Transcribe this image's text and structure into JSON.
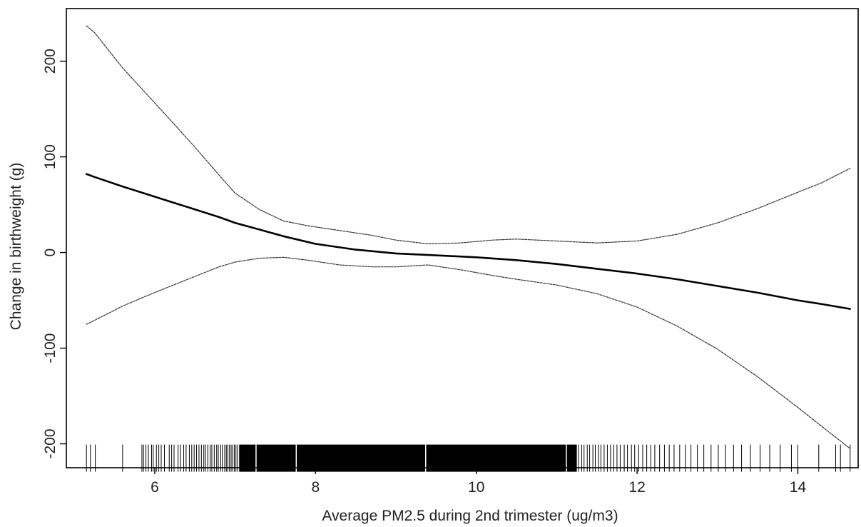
{
  "chart_data": {
    "type": "line",
    "xlabel": "Average PM2.5 during 2nd trimester (ug/m3)",
    "ylabel": "Change in birthweight (g)",
    "xlim": [
      4.9,
      14.75
    ],
    "ylim": [
      -225,
      255
    ],
    "x_ticks": [
      6,
      8,
      10,
      12,
      14
    ],
    "y_ticks": [
      -200,
      -100,
      0,
      100,
      200
    ],
    "x_tick_labels": [
      "6",
      "8",
      "10",
      "12",
      "14"
    ],
    "y_tick_labels": [
      "-200",
      "-100",
      "0",
      "100",
      "200"
    ],
    "grid": false,
    "legend": "none",
    "series": [
      {
        "role": "estimate",
        "x": [
          5.15,
          5.25,
          5.6,
          5.9,
          6.2,
          6.5,
          6.8,
          7.0,
          7.3,
          7.6,
          8.0,
          8.5,
          9.0,
          9.5,
          10.0,
          10.5,
          11.0,
          11.5,
          12.0,
          12.5,
          13.0,
          13.5,
          14.0,
          14.3,
          14.65
        ],
        "y": [
          82,
          79,
          69,
          61,
          53,
          45,
          37,
          31,
          24,
          17,
          9,
          3,
          -1,
          -3,
          -5,
          -8,
          -12,
          -17,
          -22,
          -28,
          -35,
          -42,
          -50,
          -54,
          -59
        ],
        "style": "thick"
      },
      {
        "role": "upper_bound",
        "x": [
          5.15,
          5.25,
          5.6,
          5.85,
          6.2,
          6.5,
          6.8,
          7.0,
          7.3,
          7.6,
          7.9,
          8.3,
          8.7,
          9.0,
          9.4,
          9.8,
          10.2,
          10.5,
          11.0,
          11.5,
          12.0,
          12.5,
          13.0,
          13.5,
          14.0,
          14.3,
          14.65
        ],
        "y": [
          237,
          230,
          193,
          170,
          138,
          110,
          81,
          62,
          45,
          33,
          28,
          23,
          18,
          13,
          9,
          10,
          13,
          14,
          12,
          10,
          12,
          19,
          31,
          46,
          63,
          73,
          88
        ],
        "style": "thin"
      },
      {
        "role": "lower_bound",
        "x": [
          5.15,
          5.25,
          5.6,
          5.85,
          6.2,
          6.5,
          6.8,
          7.0,
          7.3,
          7.6,
          7.9,
          8.3,
          8.7,
          9.0,
          9.4,
          9.8,
          10.2,
          10.5,
          11.0,
          11.5,
          12.0,
          12.5,
          13.0,
          13.5,
          14.0,
          14.3,
          14.65
        ],
        "y": [
          -75,
          -71,
          -56,
          -47,
          -35,
          -25,
          -15,
          -10,
          -6,
          -5,
          -8,
          -13,
          -15,
          -15,
          -13,
          -18,
          -24,
          -28,
          -34,
          -43,
          -57,
          -77,
          -101,
          -130,
          -162,
          -182,
          -205
        ],
        "style": "thin"
      }
    ],
    "rug": {
      "y": -215,
      "dense_range": [
        7.05,
        11.25
      ],
      "dense_gaps": [
        7.26,
        7.76,
        9.37,
        11.12
      ],
      "sparse_x": [
        5.15,
        5.2,
        5.26,
        5.6,
        5.84,
        5.86,
        5.89,
        5.92,
        5.96,
        5.98,
        6.02,
        6.05,
        6.08,
        6.12,
        6.18,
        6.21,
        6.24,
        6.29,
        6.32,
        6.36,
        6.39,
        6.43,
        6.46,
        6.49,
        6.52,
        6.55,
        6.58,
        6.61,
        6.63,
        6.66,
        6.69,
        6.71,
        6.74,
        6.77,
        6.79,
        6.82,
        6.84,
        6.87,
        6.89,
        6.91,
        6.93,
        6.95,
        6.97,
        6.99,
        7.01,
        7.03,
        11.27,
        11.31,
        11.34,
        11.38,
        11.41,
        11.45,
        11.48,
        11.52,
        11.55,
        11.59,
        11.63,
        11.67,
        11.71,
        11.75,
        11.79,
        11.84,
        11.88,
        11.93,
        11.97,
        12.02,
        12.07,
        12.12,
        12.17,
        12.22,
        12.28,
        12.34,
        12.4,
        12.46,
        12.53,
        12.6,
        12.67,
        12.75,
        12.83,
        12.92,
        13.01,
        13.1,
        13.2,
        13.3,
        13.41,
        13.53,
        13.65,
        13.78,
        13.92,
        14.0,
        14.26,
        14.47,
        14.53,
        14.65
      ]
    }
  }
}
